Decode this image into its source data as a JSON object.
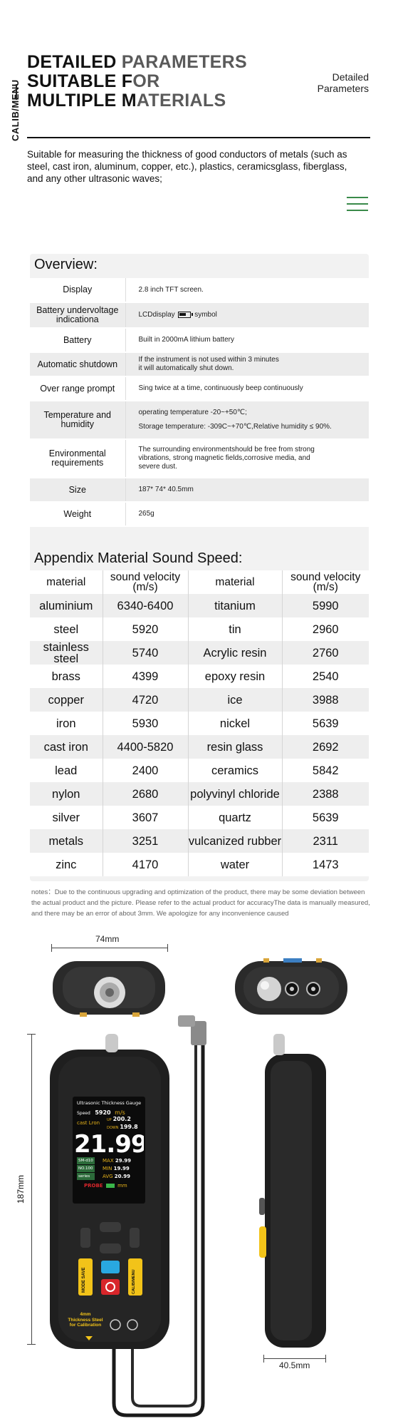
{
  "header": {
    "side_label": "CALIB/MENU",
    "title_line1_a": "DETAILED ",
    "title_line1_b": "PARAMETERS",
    "title_line2_a": "SUITABLE F",
    "title_line2_b": "OR",
    "title_line3_a": "MULTIPLE M",
    "title_line3_b": "ATERIALS",
    "top_right": "Detailed Parameters",
    "intro": "Suitable for measuring the thickness of good conductors of metals (such as steel, cast iron, aluminum, copper, etc.), plastics, ceramicsglass, fiberglass, and any other ultrasonic waves;",
    "menu_icon": "hamburger-menu-icon"
  },
  "overview": {
    "title": "Overview:",
    "rows": [
      {
        "key": "Display",
        "value": "2.8 inch TFT screen."
      },
      {
        "key": "Battery undervoltage indicationa",
        "value_a": "LCDdisplay",
        "value_b": "symbol",
        "icon": "battery-icon"
      },
      {
        "key": "Battery",
        "value": "Built in 2000mA lithium battery"
      },
      {
        "key": "Automatic shutdown",
        "value": "If the instrument is not used within 3 minutes it will automatically shut down."
      },
      {
        "key": "Over range prompt",
        "value": "Sing twice at a time, continuously beep continuously"
      },
      {
        "key": "Temperature and humidity",
        "value_a": "operating temperature -20~+50℃;",
        "value_b": "Storage temperature: -309C~+70℃,Relative humidity ≤ 90%."
      },
      {
        "key": "Environmental requirements",
        "value": "The surrounding environmentshould be free from strong vibrations, strong magnetic fields,corrosive media, and severe dust."
      },
      {
        "key": "Size",
        "value": "187* 74* 40.5mm"
      },
      {
        "key": "Weight",
        "value": "265g"
      }
    ]
  },
  "appendix": {
    "title": "Appendix Material Sound Speed:",
    "headers": [
      "material",
      "sound velocity (m/s)",
      "material",
      "sound velocity (m/s)"
    ],
    "rows": [
      [
        "aluminium",
        "6340-6400",
        "titanium",
        "5990"
      ],
      [
        "steel",
        "5920",
        "tin",
        "2960"
      ],
      [
        "stainless steel",
        "5740",
        "Acrylic resin",
        "2760"
      ],
      [
        "brass",
        "4399",
        "epoxy resin",
        "2540"
      ],
      [
        "copper",
        "4720",
        "ice",
        "3988"
      ],
      [
        "iron",
        "5930",
        "nickel",
        "5639"
      ],
      [
        "cast iron",
        "4400-5820",
        "resin glass",
        "2692"
      ],
      [
        "lead",
        "2400",
        "ceramics",
        "5842"
      ],
      [
        "nylon",
        "2680",
        "polyvinyl chloride",
        "2388"
      ],
      [
        "silver",
        "3607",
        "quartz",
        "5639"
      ],
      [
        "metals",
        "3251",
        "vulcanized rubber",
        "2311"
      ],
      [
        "zinc",
        "4170",
        "water",
        "1473"
      ]
    ],
    "notes": "notes：Due to the continuous upgrading and optimization of the product, there may be some deviation between the actual product and the picture. Please refer to the actual product for accuracyThe data is manually measured, and there may be an error of about 3mm. We apologize for any inconvenience caused"
  },
  "dimensions": {
    "width": "74mm",
    "height": "187mm",
    "depth": "40.5mm"
  },
  "device": {
    "screen_title": "Ultrasonic Thickness Gauge",
    "speed_label": "Speed",
    "speed_value": "5920",
    "speed_unit": "m/s",
    "material": "cast Lron",
    "up_label": "UP",
    "up_value": "200.2",
    "down_label": "DOWN",
    "down_value": "199.8",
    "reading": "21.99",
    "tag1": "SM-d10",
    "tag2": "NO.100",
    "tag3": "series",
    "max_label": "MAX",
    "max_value": "29.99",
    "min_label": "MIN",
    "min_value": "19.99",
    "avg_label": "AVG",
    "avg_value": "20.99",
    "probe_label": "PROBE",
    "unit_label": "mm",
    "mode_save": "MODE SAVE",
    "calib_menu": "CALIB/MENU",
    "calib_label_1": "4mm",
    "calib_label_2": "Thickness Steel",
    "calib_label_3": "for Calibration",
    "colors": {
      "accent_green": "#3a8a4a",
      "device_body": "#1f1f1f",
      "key_yellow": "#f2c319",
      "key_blue": "#29a8e0",
      "key_red": "#d8262b"
    }
  }
}
